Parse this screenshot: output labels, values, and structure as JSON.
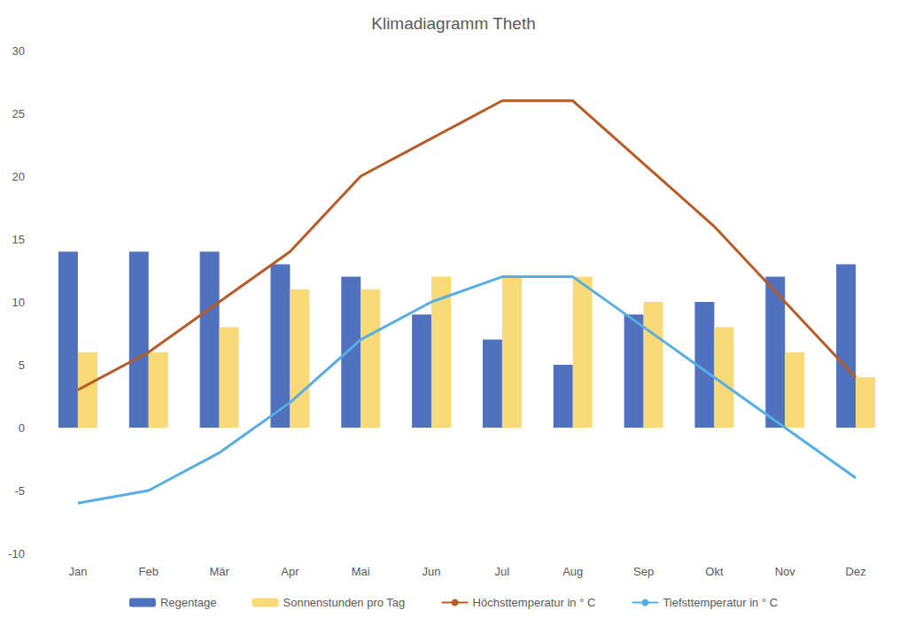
{
  "chart_data": {
    "type": "bar",
    "title": "Klimadiagramm Theth",
    "categories": [
      "Jan",
      "Feb",
      "Mär",
      "Apr",
      "Mai",
      "Jun",
      "Jul",
      "Aug",
      "Sep",
      "Okt",
      "Nov",
      "Dez"
    ],
    "series": [
      {
        "name": "Regentage",
        "type": "bar",
        "color": "#4f71be",
        "values": [
          14,
          14,
          14,
          13,
          12,
          9,
          7,
          5,
          9,
          10,
          12,
          13
        ]
      },
      {
        "name": "Sonnenstunden pro Tag",
        "type": "bar",
        "color": "#f9d978",
        "values": [
          6,
          6,
          8,
          11,
          11,
          12,
          12,
          12,
          10,
          8,
          6,
          4
        ]
      },
      {
        "name": "Höchsttemperatur in ° C",
        "type": "line",
        "color": "#b85c27",
        "values": [
          3,
          6,
          10,
          14,
          20,
          23,
          26,
          26,
          21,
          16,
          10,
          4
        ]
      },
      {
        "name": "Tiefsttemperatur in ° C",
        "type": "line",
        "color": "#56aee3",
        "values": [
          -6,
          -5,
          -2,
          2,
          7,
          10,
          12,
          12,
          8,
          4,
          0,
          -4
        ]
      }
    ],
    "ylim": [
      -10,
      30
    ],
    "yticks": [
      -10,
      -5,
      0,
      5,
      10,
      15,
      20,
      25,
      30
    ],
    "grid": false,
    "legend": "bottom"
  }
}
